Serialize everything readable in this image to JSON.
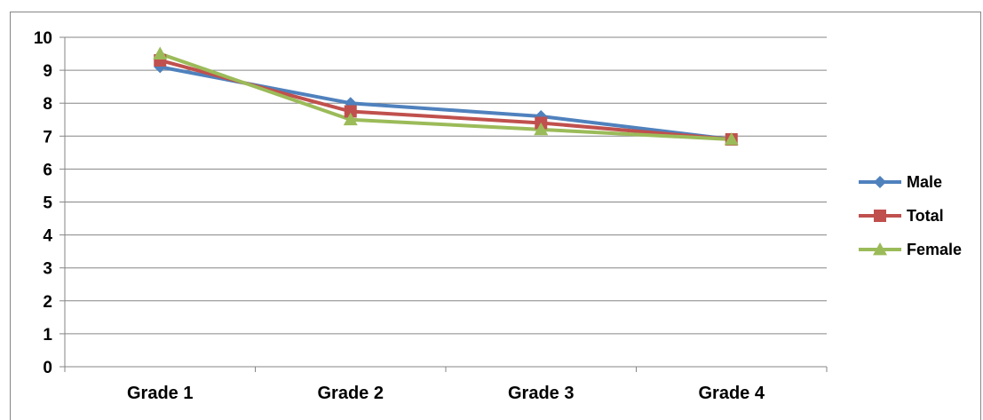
{
  "chart_data": {
    "type": "line",
    "title": "",
    "xlabel": "",
    "ylabel": "",
    "categories": [
      "Grade 1",
      "Grade 2",
      "Grade 3",
      "Grade 4"
    ],
    "ylim": [
      0,
      10
    ],
    "yticks": [
      "0",
      "1",
      "2",
      "3",
      "4",
      "5",
      "6",
      "7",
      "8",
      "9",
      "10"
    ],
    "grid": true,
    "legend_position": "right",
    "series": [
      {
        "name": "Male",
        "values": [
          9.1,
          8.0,
          7.6,
          6.9
        ],
        "color": "#4F81BD",
        "marker": "diamond"
      },
      {
        "name": "Total",
        "values": [
          9.3,
          7.75,
          7.4,
          6.9
        ],
        "color": "#C0504D",
        "marker": "square"
      },
      {
        "name": "Female",
        "values": [
          9.5,
          7.5,
          7.2,
          6.9
        ],
        "color": "#9BBB59",
        "marker": "triangle"
      }
    ]
  }
}
